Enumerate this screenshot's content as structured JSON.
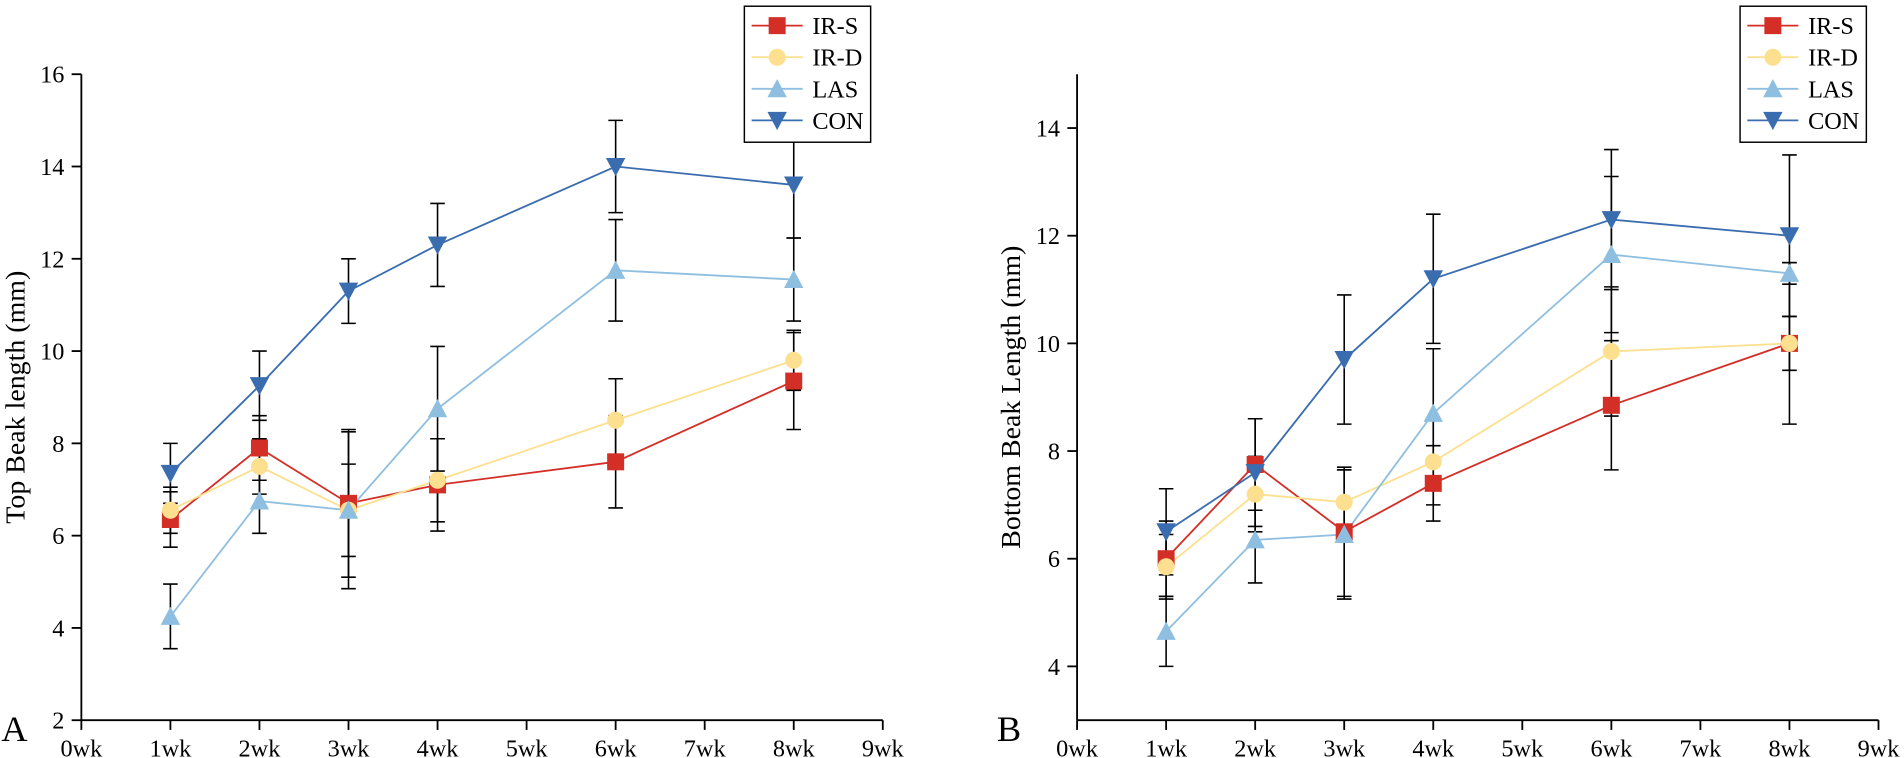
{
  "chart_data": [
    {
      "type": "line",
      "panel_label": "A",
      "y_label": "Top Beak length (mm)",
      "x": [
        1,
        2,
        3,
        4,
        6,
        8
      ],
      "xlim": [
        0,
        9
      ],
      "xticks": [
        {
          "value": 0,
          "label": "0wk"
        },
        {
          "value": 1,
          "label": "1wk"
        },
        {
          "value": 2,
          "label": "2wk"
        },
        {
          "value": 3,
          "label": "3wk"
        },
        {
          "value": 4,
          "label": "4wk"
        },
        {
          "value": 5,
          "label": "5wk"
        },
        {
          "value": 6,
          "label": "6wk"
        },
        {
          "value": 7,
          "label": "7wk"
        },
        {
          "value": 8,
          "label": "8wk"
        },
        {
          "value": 9,
          "label": "9wk"
        }
      ],
      "ylim": [
        2,
        16
      ],
      "yticks": [
        2,
        4,
        6,
        8,
        10,
        12,
        14,
        16
      ],
      "legend": "upper right",
      "series": [
        {
          "name": "IR-S",
          "color": "#d42f27",
          "marker": "square",
          "values": [
            6.35,
            7.9,
            6.7,
            7.1,
            7.6,
            9.35
          ],
          "errors": [
            0.6,
            0.7,
            1.6,
            1.0,
            1.0,
            1.05
          ]
        },
        {
          "name": "IR-D",
          "color": "#fde08f",
          "marker": "circle",
          "values": [
            6.55,
            7.5,
            6.55,
            7.2,
            8.5,
            9.8
          ],
          "errors": [
            0.5,
            0.6,
            1.7,
            0.9,
            0.9,
            0.65
          ]
        },
        {
          "name": "LAS",
          "color": "#8fbfe0",
          "marker": "triangle-up",
          "values": [
            4.25,
            6.75,
            6.55,
            8.75,
            11.75,
            11.55
          ],
          "errors": [
            0.7,
            0.7,
            1.0,
            1.35,
            1.1,
            0.9
          ]
        },
        {
          "name": "CON",
          "color": "#3a6db0",
          "marker": "triangle-down",
          "values": [
            7.35,
            9.25,
            11.3,
            12.3,
            14.0,
            13.6
          ],
          "errors": [
            0.65,
            0.75,
            0.7,
            0.9,
            1.0,
            1.15
          ]
        }
      ]
    },
    {
      "type": "line",
      "panel_label": "B",
      "y_label": "Bottom Beak Length (mm)",
      "x": [
        1,
        2,
        3,
        4,
        6,
        8
      ],
      "xlim": [
        0,
        9
      ],
      "xticks": [
        {
          "value": 0,
          "label": "0wk"
        },
        {
          "value": 1,
          "label": "1wk"
        },
        {
          "value": 2,
          "label": "2wk"
        },
        {
          "value": 3,
          "label": "3wk"
        },
        {
          "value": 4,
          "label": "4wk"
        },
        {
          "value": 5,
          "label": "5wk"
        },
        {
          "value": 6,
          "label": "6wk"
        },
        {
          "value": 7,
          "label": "7wk"
        },
        {
          "value": 8,
          "label": "8wk"
        },
        {
          "value": 9,
          "label": "9wk"
        }
      ],
      "ylim": [
        3,
        15
      ],
      "yticks": [
        4,
        6,
        8,
        10,
        12,
        14
      ],
      "legend": "upper right",
      "series": [
        {
          "name": "IR-S",
          "color": "#d42f27",
          "marker": "square",
          "values": [
            6.0,
            7.75,
            6.5,
            7.4,
            8.85,
            10.0
          ],
          "errors": [
            0.7,
            0.85,
            1.2,
            0.7,
            1.2,
            1.5
          ]
        },
        {
          "name": "IR-D",
          "color": "#fde08f",
          "marker": "circle",
          "values": [
            5.85,
            7.2,
            7.05,
            7.8,
            9.85,
            10.0
          ],
          "errors": [
            0.6,
            0.7,
            0.6,
            0.8,
            1.2,
            0.5
          ]
        },
        {
          "name": "LAS",
          "color": "#8fbfe0",
          "marker": "triangle-up",
          "values": [
            4.65,
            6.35,
            6.45,
            8.7,
            11.65,
            11.3
          ],
          "errors": [
            0.65,
            0.8,
            1.2,
            1.2,
            1.45,
            0.2
          ]
        },
        {
          "name": "CON",
          "color": "#3a6db0",
          "marker": "triangle-down",
          "values": [
            6.5,
            7.6,
            9.7,
            11.2,
            12.3,
            12.0
          ],
          "errors": [
            0.8,
            1.0,
            1.2,
            1.2,
            1.3,
            1.5
          ]
        }
      ]
    }
  ]
}
